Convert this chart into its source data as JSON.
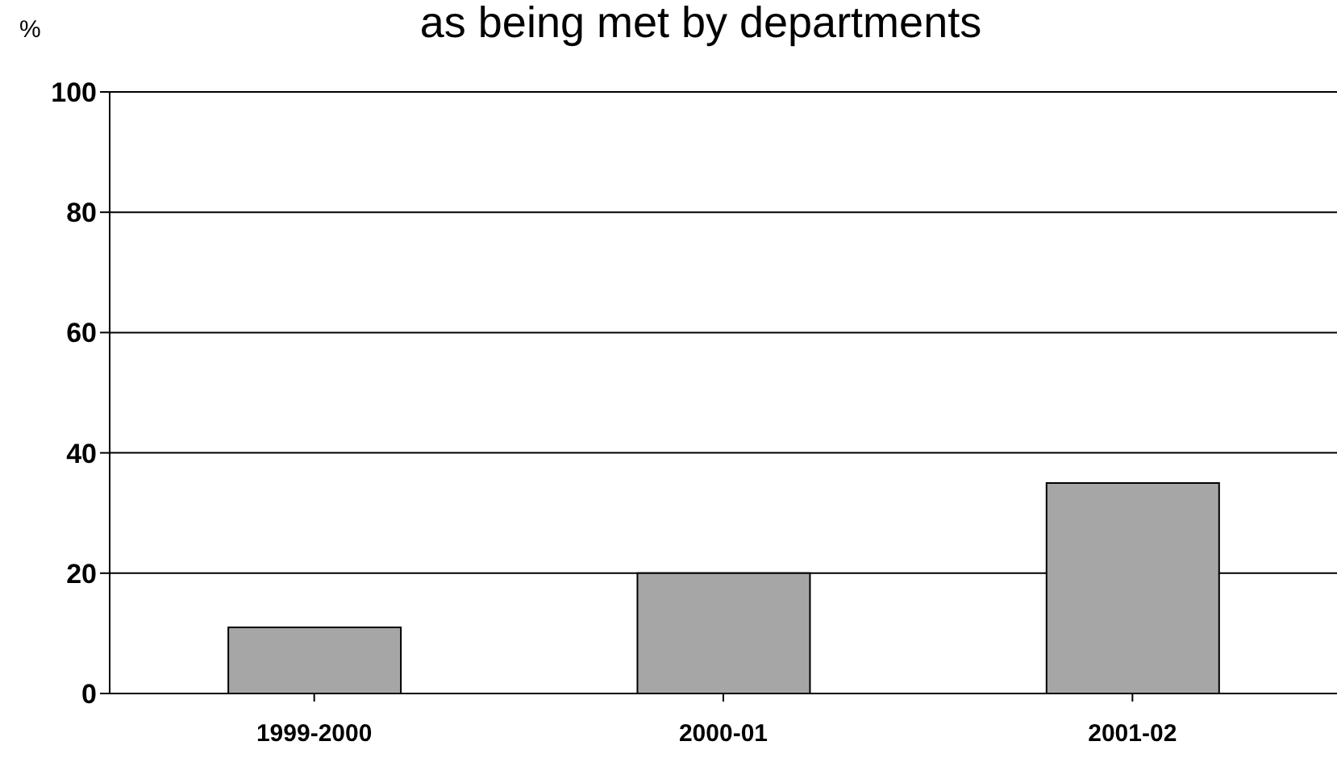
{
  "chart_data": {
    "type": "bar",
    "title": "as being met by departments",
    "ylabel": "%",
    "categories": [
      "1999-2000",
      "2000-01",
      "2001-02"
    ],
    "series": [
      {
        "color": "#a6a6a6",
        "values": [
          11,
          20,
          35
        ]
      }
    ],
    "ylim": [
      0,
      100
    ],
    "yticks": [
      0,
      20,
      40,
      60,
      80,
      100
    ],
    "grid": "y"
  }
}
